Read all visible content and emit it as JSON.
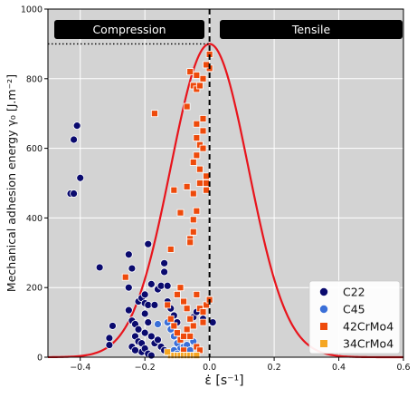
{
  "chart_data": {
    "type": "scatter",
    "xlabel": "ε̇ [s⁻¹]",
    "ylabel": "Mechanical adhesion energy γ₀ [J.m⁻²]",
    "xlim": [
      -0.5,
      0.6
    ],
    "ylim": [
      0,
      1000
    ],
    "xticks": [
      -0.4,
      -0.2,
      0.0,
      0.2,
      0.4,
      0.6
    ],
    "xtick_labels": [
      "−0.4",
      "−0.2",
      "0.0",
      "0.2",
      "0.4",
      "0.6"
    ],
    "yticks": [
      0,
      200,
      400,
      600,
      800,
      1000
    ],
    "ytick_labels": [
      "0",
      "200",
      "400",
      "600",
      "800",
      "1000"
    ],
    "grid": true,
    "background": "#d3d3d3",
    "legend_position": "lower-right",
    "annotations": {
      "compression": "Compression",
      "tensile": "Tensile"
    },
    "reference_lines": {
      "vertical_x": 0.0,
      "horizontal_y": 900,
      "curve": {
        "type": "gaussian",
        "peak_x": 0.0,
        "peak_y": 900,
        "sigma": 0.12,
        "color": "#e8141c"
      }
    },
    "series": [
      {
        "name": "C22",
        "marker": "circle",
        "color": "#0a0a6e",
        "points": [
          [
            -0.43,
            470
          ],
          [
            -0.42,
            470
          ],
          [
            -0.42,
            625
          ],
          [
            -0.41,
            665
          ],
          [
            -0.4,
            515
          ],
          [
            -0.34,
            258
          ],
          [
            -0.3,
            90
          ],
          [
            -0.31,
            55
          ],
          [
            -0.31,
            35
          ],
          [
            -0.25,
            295
          ],
          [
            -0.24,
            255
          ],
          [
            -0.25,
            200
          ],
          [
            -0.25,
            135
          ],
          [
            -0.24,
            105
          ],
          [
            -0.23,
            95
          ],
          [
            -0.22,
            80
          ],
          [
            -0.23,
            60
          ],
          [
            -0.22,
            45
          ],
          [
            -0.21,
            40
          ],
          [
            -0.2,
            70
          ],
          [
            -0.22,
            160
          ],
          [
            -0.21,
            170
          ],
          [
            -0.2,
            180
          ],
          [
            -0.2,
            155
          ],
          [
            -0.19,
            150
          ],
          [
            -0.2,
            125
          ],
          [
            -0.19,
            100
          ],
          [
            -0.18,
            210
          ],
          [
            -0.19,
            325
          ],
          [
            -0.17,
            150
          ],
          [
            -0.16,
            195
          ],
          [
            -0.15,
            205
          ],
          [
            -0.14,
            245
          ],
          [
            -0.14,
            270
          ],
          [
            -0.13,
            205
          ],
          [
            -0.13,
            160
          ],
          [
            -0.12,
            140
          ],
          [
            -0.11,
            120
          ],
          [
            -0.1,
            100
          ],
          [
            -0.18,
            60
          ],
          [
            -0.17,
            40
          ],
          [
            -0.16,
            50
          ],
          [
            -0.15,
            30
          ],
          [
            -0.14,
            20
          ],
          [
            -0.05,
            115
          ],
          [
            -0.04,
            130
          ],
          [
            -0.02,
            110
          ],
          [
            0.01,
            100
          ],
          [
            -0.21,
            15
          ],
          [
            -0.24,
            30
          ],
          [
            -0.23,
            20
          ],
          [
            -0.2,
            25
          ],
          [
            -0.19,
            10
          ],
          [
            -0.18,
            5
          ]
        ]
      },
      {
        "name": "C45",
        "marker": "circle",
        "color": "#3a6fd8",
        "points": [
          [
            -0.16,
            95
          ],
          [
            -0.13,
            100
          ],
          [
            -0.12,
            80
          ],
          [
            -0.11,
            60
          ],
          [
            -0.1,
            40
          ],
          [
            -0.09,
            25
          ],
          [
            -0.08,
            30
          ],
          [
            -0.07,
            35
          ],
          [
            -0.06,
            20
          ],
          [
            -0.05,
            45
          ],
          [
            -0.11,
            20
          ],
          [
            -0.1,
            10
          ]
        ]
      },
      {
        "name": "42CrMo4",
        "marker": "square",
        "color": "#ee4a0b",
        "points": [
          [
            -0.26,
            230
          ],
          [
            -0.17,
            700
          ],
          [
            -0.12,
            310
          ],
          [
            -0.11,
            480
          ],
          [
            -0.09,
            415
          ],
          [
            -0.07,
            720
          ],
          [
            -0.07,
            490
          ],
          [
            -0.06,
            820
          ],
          [
            -0.05,
            780
          ],
          [
            -0.05,
            560
          ],
          [
            -0.05,
            470
          ],
          [
            -0.06,
            340
          ],
          [
            -0.05,
            360
          ],
          [
            -0.04,
            810
          ],
          [
            -0.04,
            770
          ],
          [
            -0.03,
            780
          ],
          [
            -0.04,
            670
          ],
          [
            -0.04,
            630
          ],
          [
            -0.03,
            610
          ],
          [
            -0.04,
            580
          ],
          [
            -0.03,
            540
          ],
          [
            -0.03,
            500
          ],
          [
            -0.02,
            685
          ],
          [
            -0.02,
            650
          ],
          [
            -0.02,
            600
          ],
          [
            -0.01,
            520
          ],
          [
            -0.01,
            500
          ],
          [
            -0.01,
            480
          ],
          [
            0.0,
            870
          ],
          [
            0.0,
            830
          ],
          [
            -0.01,
            840
          ],
          [
            -0.02,
            800
          ],
          [
            -0.04,
            420
          ],
          [
            -0.05,
            395
          ],
          [
            -0.06,
            330
          ],
          [
            -0.13,
            150
          ],
          [
            -0.12,
            110
          ],
          [
            -0.11,
            90
          ],
          [
            -0.1,
            70
          ],
          [
            -0.09,
            50
          ],
          [
            -0.08,
            160
          ],
          [
            -0.07,
            140
          ],
          [
            -0.06,
            110
          ],
          [
            -0.05,
            90
          ],
          [
            -0.04,
            180
          ],
          [
            -0.03,
            140
          ],
          [
            -0.02,
            130
          ],
          [
            -0.02,
            100
          ],
          [
            -0.01,
            150
          ],
          [
            0.0,
            165
          ],
          [
            -0.08,
            60
          ],
          [
            -0.07,
            80
          ],
          [
            -0.06,
            60
          ],
          [
            -0.04,
            30
          ],
          [
            -0.03,
            20
          ],
          [
            -0.09,
            200
          ],
          [
            -0.1,
            180
          ],
          [
            -0.08,
            20
          ]
        ]
      },
      {
        "name": "34CrMo4",
        "marker": "square",
        "color": "#f5a623",
        "points": [
          [
            -0.12,
            5
          ],
          [
            -0.11,
            5
          ],
          [
            -0.1,
            5
          ],
          [
            -0.09,
            5
          ],
          [
            -0.08,
            5
          ],
          [
            -0.07,
            5
          ],
          [
            -0.06,
            5
          ],
          [
            -0.05,
            5
          ],
          [
            -0.04,
            5
          ],
          [
            -0.13,
            15
          ]
        ]
      }
    ]
  }
}
